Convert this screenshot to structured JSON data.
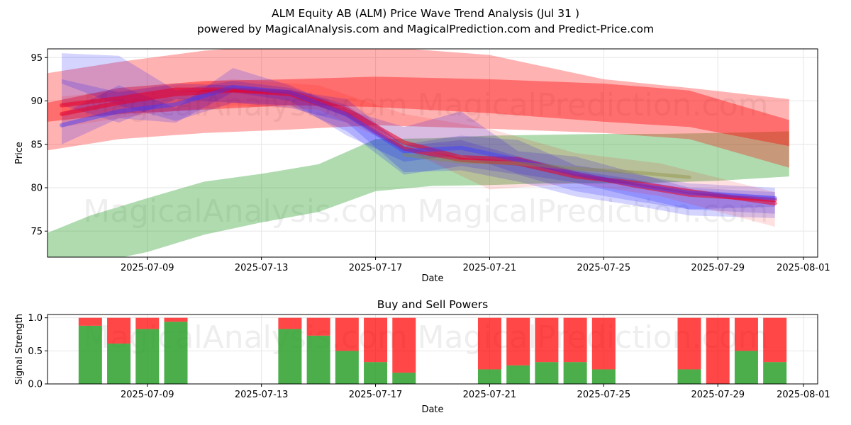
{
  "title": "ALM Equity AB (ALM) Price Wave Trend Analysis (Jul 31 )",
  "subtitle": "powered by MagicalAnalysis.com and MagicalPrediction.com and Predict-Price.com",
  "watermarks": [
    "MagicalAnalysis.com",
    "MagicalPrediction.com"
  ],
  "chart_data": [
    {
      "type": "line",
      "title": "",
      "xlabel": "Date",
      "ylabel": "Price",
      "ylim": [
        72,
        96
      ],
      "xlim": [
        "2025-07-05T12",
        "2025-08-01T12"
      ],
      "yticks": [
        75,
        80,
        85,
        90,
        95
      ],
      "xticks": [
        "2025-07-09",
        "2025-07-13",
        "2025-07-17",
        "2025-07-21",
        "2025-07-25",
        "2025-07-29",
        "2025-08-01"
      ],
      "grid": true,
      "bands": [
        {
          "name": "green-support-band",
          "color": "#2ca02c",
          "opacity": 0.38,
          "x": [
            "2025-07-05T12",
            "2025-07-07",
            "2025-07-09",
            "2025-07-11",
            "2025-07-13",
            "2025-07-15",
            "2025-07-17",
            "2025-07-19",
            "2025-07-21",
            "2025-07-23",
            "2025-07-25",
            "2025-07-27",
            "2025-07-29",
            "2025-07-31T12"
          ],
          "upper": [
            74.8,
            76.8,
            78.8,
            80.7,
            81.6,
            82.7,
            85.6,
            85.7,
            86.0,
            86.1,
            86.2,
            86.2,
            86.3,
            86.5
          ],
          "lower": [
            71.5,
            71.2,
            72.6,
            74.6,
            76.0,
            77.2,
            79.6,
            80.2,
            80.3,
            80.5,
            80.5,
            80.6,
            80.8,
            81.3
          ]
        },
        {
          "name": "red-upper-wide-band",
          "color": "#ff0000",
          "opacity": 0.3,
          "x": [
            "2025-07-05T12",
            "2025-07-08",
            "2025-07-11",
            "2025-07-14",
            "2025-07-17",
            "2025-07-21",
            "2025-07-25",
            "2025-07-28",
            "2025-07-31T12"
          ],
          "upper": [
            93.2,
            94.5,
            95.8,
            96.5,
            96.3,
            95.3,
            92.5,
            91.5,
            90.2
          ],
          "lower": [
            84.3,
            85.6,
            86.3,
            86.7,
            87.2,
            86.8,
            86.3,
            85.6,
            82.3
          ]
        },
        {
          "name": "red-lower-band",
          "color": "#ff0000",
          "opacity": 0.38,
          "x": [
            "2025-07-05T12",
            "2025-07-08",
            "2025-07-11",
            "2025-07-14",
            "2025-07-17",
            "2025-07-21",
            "2025-07-25",
            "2025-07-28",
            "2025-07-31T12"
          ],
          "upper": [
            89.8,
            91.5,
            92.3,
            92.5,
            92.8,
            92.5,
            92.0,
            91.2,
            87.8
          ],
          "lower": [
            87.6,
            88.5,
            89.0,
            89.5,
            89.3,
            88.6,
            87.6,
            87.0,
            84.8
          ]
        },
        {
          "name": "blue-wave-band-1",
          "color": "#0000ff",
          "opacity": 0.17,
          "x": [
            "2025-07-06",
            "2025-07-08",
            "2025-07-10",
            "2025-07-12",
            "2025-07-14",
            "2025-07-16",
            "2025-07-18",
            "2025-07-20",
            "2025-07-22",
            "2025-07-24",
            "2025-07-26",
            "2025-07-28",
            "2025-07-31"
          ],
          "upper": [
            95.5,
            95.2,
            91.2,
            92.3,
            91.5,
            89.5,
            85.0,
            86.0,
            85.5,
            82.6,
            81.6,
            80.5,
            80.0
          ],
          "lower": [
            92.0,
            89.5,
            87.7,
            89.8,
            89.5,
            86.5,
            81.5,
            82.5,
            81.5,
            79.6,
            78.5,
            77.5,
            77.0
          ]
        },
        {
          "name": "blue-wave-band-2",
          "color": "#0000ff",
          "opacity": 0.17,
          "x": [
            "2025-07-06",
            "2025-07-08",
            "2025-07-10",
            "2025-07-12",
            "2025-07-14",
            "2025-07-16",
            "2025-07-18",
            "2025-07-20",
            "2025-07-22",
            "2025-07-24",
            "2025-07-26",
            "2025-07-28",
            "2025-07-31"
          ],
          "upper": [
            88.5,
            91.8,
            89.2,
            93.8,
            91.8,
            89.0,
            87.0,
            88.8,
            84.2,
            83.6,
            81.8,
            80.0,
            79.5
          ],
          "lower": [
            85.0,
            88.0,
            87.5,
            91.0,
            90.0,
            86.0,
            83.0,
            83.8,
            81.6,
            80.6,
            79.0,
            77.5,
            77.8
          ]
        },
        {
          "name": "blue-wave-band-3",
          "color": "#0000ff",
          "opacity": 0.17,
          "x": [
            "2025-07-06",
            "2025-07-08",
            "2025-07-10",
            "2025-07-12",
            "2025-07-14",
            "2025-07-16",
            "2025-07-18",
            "2025-07-20",
            "2025-07-22",
            "2025-07-24",
            "2025-07-26",
            "2025-07-28",
            "2025-07-31"
          ],
          "upper": [
            92.5,
            91.0,
            92.0,
            91.8,
            91.2,
            90.2,
            84.8,
            85.5,
            83.6,
            82.0,
            81.0,
            79.8,
            79.0
          ],
          "lower": [
            89.5,
            87.5,
            90.2,
            89.8,
            89.2,
            87.5,
            81.8,
            82.0,
            80.7,
            79.0,
            78.0,
            76.8,
            76.5
          ]
        },
        {
          "name": "pink-wave-band",
          "color": "#ff0000",
          "opacity": 0.12,
          "x": [
            "2025-07-06",
            "2025-07-09",
            "2025-07-12",
            "2025-07-15",
            "2025-07-18",
            "2025-07-21",
            "2025-07-24",
            "2025-07-27",
            "2025-07-31"
          ],
          "upper": [
            90.5,
            91.5,
            92.5,
            91.8,
            88.5,
            86.8,
            84.0,
            82.8,
            79.5
          ],
          "lower": [
            87.0,
            88.5,
            89.5,
            89.0,
            84.5,
            79.8,
            80.5,
            79.0,
            75.5
          ]
        }
      ],
      "series": [
        {
          "name": "red-wave-1",
          "color": "#e8002a",
          "opacity": 0.55,
          "width": 6,
          "x": [
            "2025-07-06",
            "2025-07-08",
            "2025-07-10",
            "2025-07-12",
            "2025-07-14",
            "2025-07-16",
            "2025-07-18",
            "2025-07-20",
            "2025-07-22",
            "2025-07-24",
            "2025-07-26",
            "2025-07-28",
            "2025-07-31"
          ],
          "y": [
            88.5,
            89.8,
            90.8,
            91.2,
            90.8,
            88.5,
            84.5,
            83.2,
            82.8,
            81.3,
            80.6,
            79.6,
            78.2
          ]
        },
        {
          "name": "red-wave-2",
          "color": "#e8002a",
          "opacity": 0.55,
          "width": 6,
          "x": [
            "2025-07-06",
            "2025-07-08",
            "2025-07-10",
            "2025-07-12",
            "2025-07-14",
            "2025-07-16",
            "2025-07-18",
            "2025-07-20",
            "2025-07-22",
            "2025-07-24",
            "2025-07-26",
            "2025-07-28",
            "2025-07-31"
          ],
          "y": [
            89.5,
            90.3,
            91.3,
            91.3,
            91.0,
            89.0,
            85.2,
            83.5,
            83.3,
            81.6,
            80.3,
            79.2,
            78.6
          ]
        },
        {
          "name": "blue-wave-1",
          "color": "#3c3cff",
          "opacity": 0.45,
          "width": 6,
          "x": [
            "2025-07-06",
            "2025-07-08",
            "2025-07-10",
            "2025-07-12",
            "2025-07-14",
            "2025-07-16",
            "2025-07-18",
            "2025-07-20",
            "2025-07-22",
            "2025-07-24",
            "2025-07-26",
            "2025-07-28",
            "2025-07-31"
          ],
          "y": [
            87.2,
            88.8,
            89.6,
            91.6,
            91.0,
            88.4,
            84.2,
            84.6,
            83.2,
            81.6,
            80.4,
            79.4,
            78.8
          ]
        },
        {
          "name": "olive-wave",
          "color": "#8c8c3c",
          "opacity": 0.4,
          "width": 5,
          "x": [
            "2025-07-18",
            "2025-07-20",
            "2025-07-22",
            "2025-07-24",
            "2025-07-26",
            "2025-07-28"
          ],
          "y": [
            83.8,
            83.0,
            82.8,
            82.2,
            81.8,
            81.2
          ]
        }
      ]
    },
    {
      "type": "bar",
      "title": "Buy and Sell Powers",
      "xlabel": "Date",
      "ylabel": "Signal Strength",
      "ylim": [
        0,
        1.05
      ],
      "yticks": [
        "0.0",
        "0.5",
        "1.0"
      ],
      "xticks": [
        "2025-07-09",
        "2025-07-13",
        "2025-07-17",
        "2025-07-21",
        "2025-07-25",
        "2025-07-29",
        "2025-08-01"
      ],
      "grid": true,
      "categories": [
        "2025-07-07",
        "2025-07-08",
        "2025-07-09",
        "2025-07-10",
        "2025-07-14",
        "2025-07-15",
        "2025-07-16",
        "2025-07-17",
        "2025-07-18",
        "2025-07-21",
        "2025-07-22",
        "2025-07-23",
        "2025-07-24",
        "2025-07-25",
        "2025-07-28",
        "2025-07-29",
        "2025-07-30",
        "2025-07-31"
      ],
      "series": [
        {
          "name": "Buy",
          "color": "#2ca02c",
          "values": [
            0.88,
            0.61,
            0.83,
            0.94,
            0.83,
            0.73,
            0.5,
            0.33,
            0.17,
            0.22,
            0.28,
            0.33,
            0.33,
            0.22,
            0.22,
            0.0,
            0.5,
            0.33
          ]
        },
        {
          "name": "Sell",
          "color": "#ff0000",
          "values": [
            0.12,
            0.39,
            0.17,
            0.06,
            0.17,
            0.27,
            0.5,
            0.67,
            0.83,
            0.78,
            0.72,
            0.67,
            0.67,
            0.78,
            0.78,
            1.0,
            0.5,
            0.67
          ]
        }
      ]
    }
  ]
}
